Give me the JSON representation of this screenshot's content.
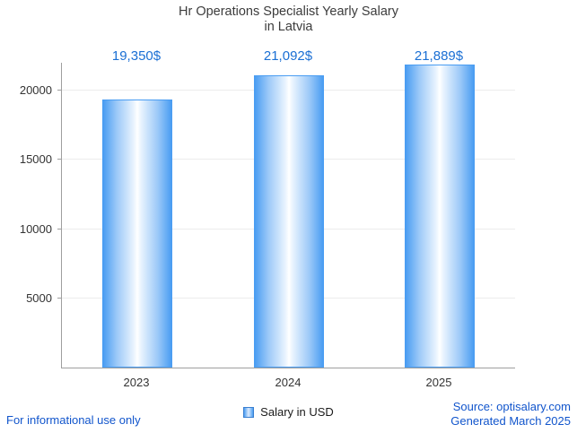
{
  "chart_data": {
    "type": "bar",
    "title": "Hr Operations Specialist Yearly Salary in Latvia",
    "title_line1": "Hr Operations Specialist Yearly Salary",
    "title_line2": "in Latvia",
    "categories": [
      "2023",
      "2024",
      "2025"
    ],
    "values": [
      19350,
      21092,
      21889
    ],
    "value_labels": [
      "19,350$",
      "21,092$",
      "21,889$"
    ],
    "series": [
      {
        "name": "Salary in USD",
        "values": [
          19350,
          21092,
          21889
        ]
      }
    ],
    "xlabel": "",
    "ylabel": "",
    "ylim": [
      0,
      21889
    ],
    "yticks": [
      5000,
      10000,
      15000,
      20000
    ],
    "grid": true,
    "legend_position": "bottom"
  },
  "legend": {
    "label": "Salary in USD"
  },
  "footer": {
    "disclaimer": "For informational use only",
    "source": "Source: optisalary.com",
    "generated": "Generated March 2025"
  },
  "colors": {
    "bar_edge": "#4a9df2",
    "bar_center": "#ffffff",
    "value_label_text": "#1a6fd4",
    "footer_link_text": "#1155cc",
    "title_text": "#3c3c3c",
    "axis_text": "#333333",
    "axis_line": "#9e9e9e",
    "gridline": "#ececec"
  }
}
